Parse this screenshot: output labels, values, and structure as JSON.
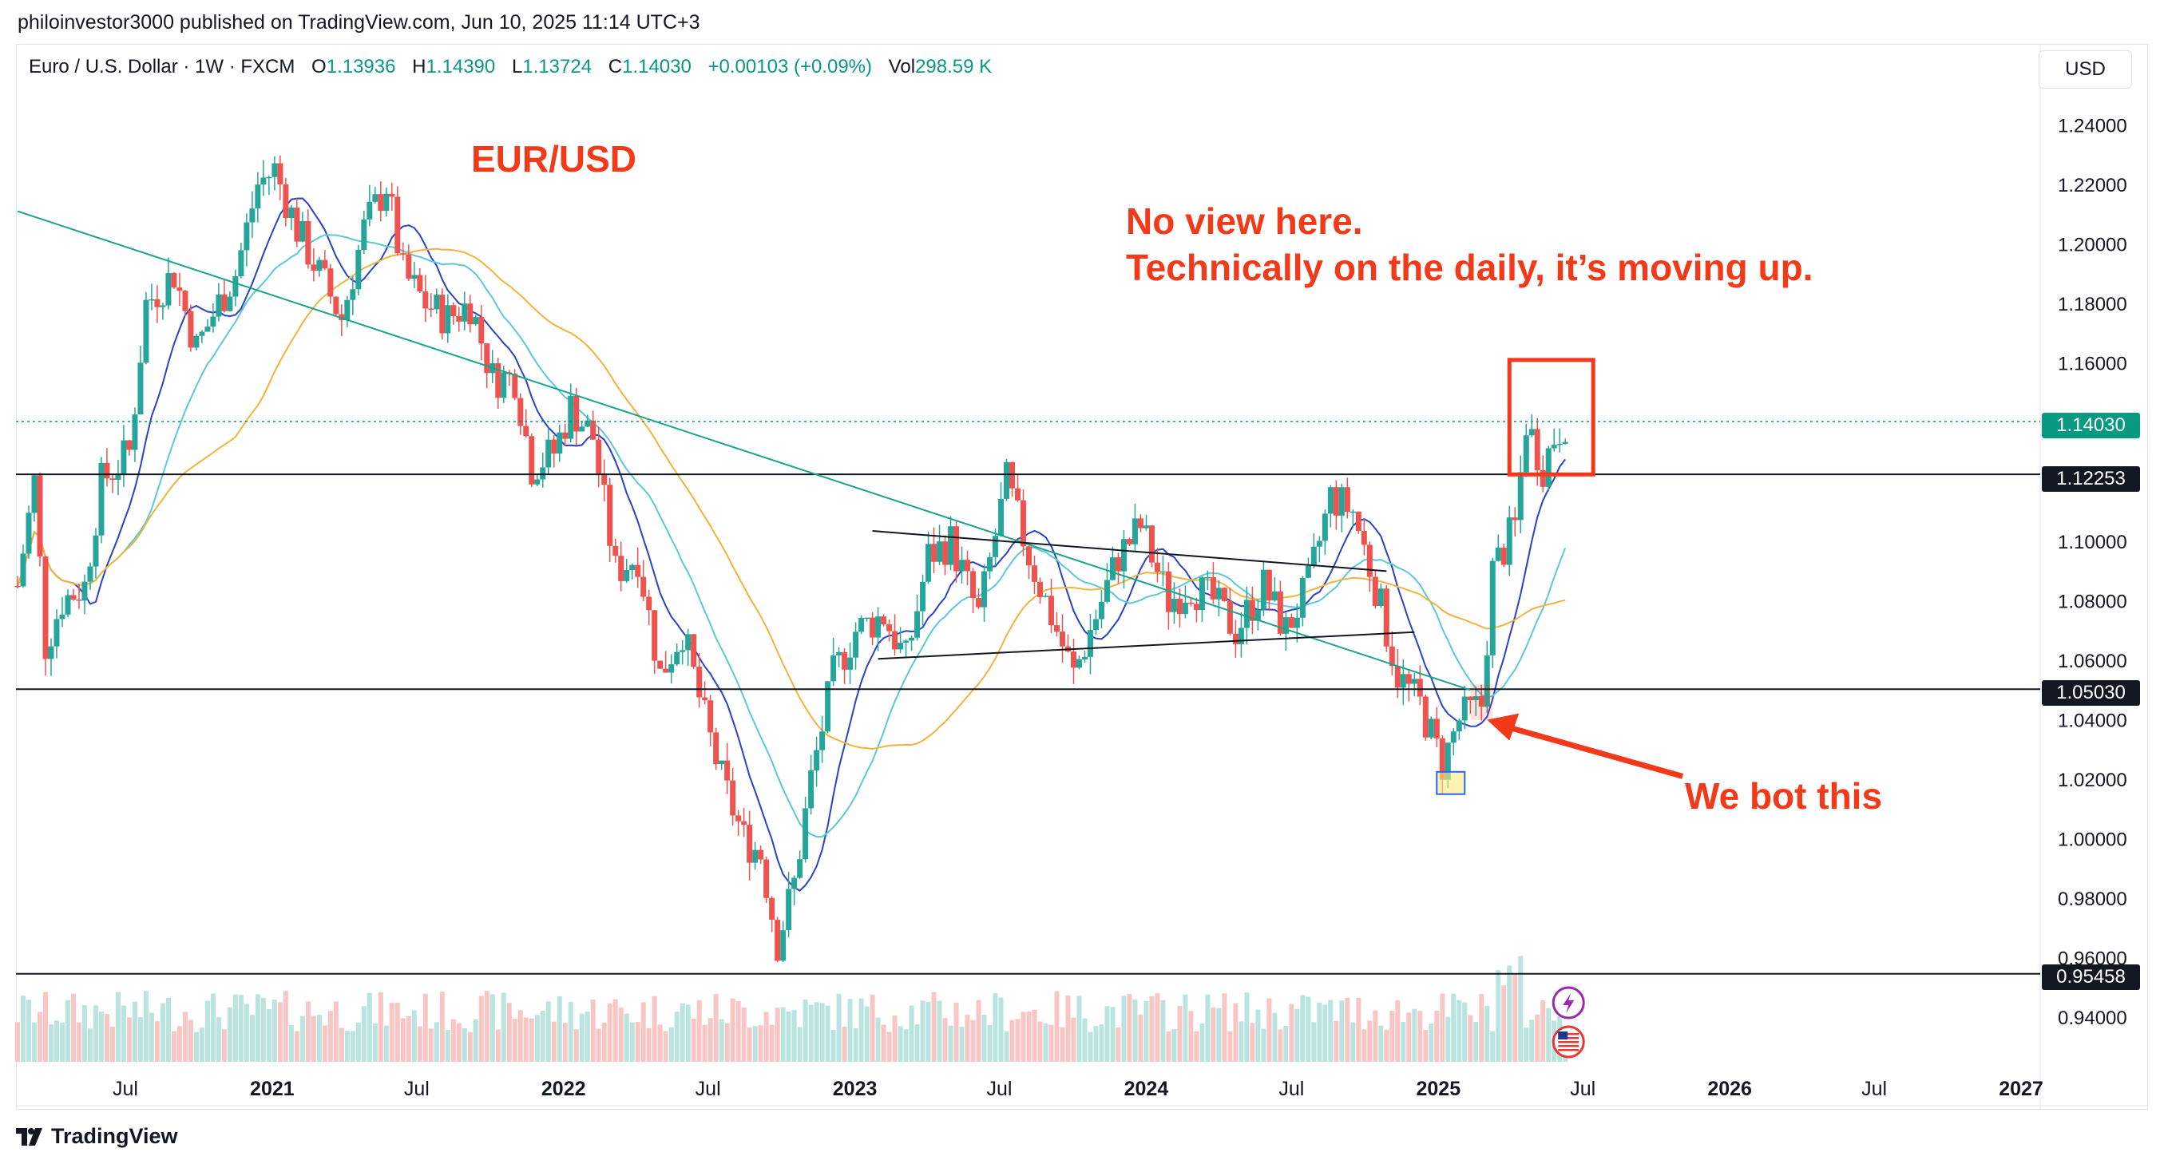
{
  "header": {
    "published": "philoinvestor3000 published on TradingView.com, Jun 10, 2025 11:14 UTC+3"
  },
  "legend": {
    "symbol": "Euro / U.S. Dollar · 1W · FXCM",
    "o_label": "O",
    "o_value": "1.13936",
    "h_label": "H",
    "h_value": "1.14390",
    "l_label": "L",
    "l_value": "1.13724",
    "c_label": "C",
    "c_value": "1.14030",
    "change": "+0.00103 (+0.09%)",
    "vol_label": "Vol",
    "vol_value": "298.59 K"
  },
  "currency_button": "USD",
  "price_tags": {
    "last": "1.14030",
    "line_1": "1.12253",
    "line_2": "1.05030",
    "line_3": "0.95458"
  },
  "annotations": {
    "title": "EUR/USD",
    "view_line1": "No view here.",
    "view_line2": "Technically on the daily, it’s moving up.",
    "bought": "We bot this"
  },
  "footer": {
    "logo_text": "TradingView"
  },
  "colors": {
    "up": "#26a69a",
    "down": "#ef5350",
    "annotation": "#f23a1a",
    "ma_fast": "#2942c9",
    "ma_mid": "#5bc8d8",
    "ma_slow": "#f0b43a",
    "trendline": "#1aa58a",
    "last_price": "#089981"
  },
  "chart_data": {
    "type": "candlestick",
    "interval": "1W",
    "y_axis": {
      "ticks": [
        "1.24000",
        "1.22000",
        "1.20000",
        "1.18000",
        "1.16000",
        "1.14000",
        "1.12000",
        "1.10000",
        "1.08000",
        "1.06000",
        "1.04000",
        "1.02000",
        "1.00000",
        "0.98000",
        "0.96000",
        "0.94000"
      ],
      "range": [
        0.925,
        1.2525
      ],
      "side": "right"
    },
    "x_axis": {
      "ticks": [
        {
          "label": "Jul",
          "date": "2020-07-01",
          "bold": false
        },
        {
          "label": "2021",
          "date": "2021-01-01",
          "bold": true
        },
        {
          "label": "Jul",
          "date": "2021-07-01",
          "bold": false
        },
        {
          "label": "2022",
          "date": "2022-01-01",
          "bold": true
        },
        {
          "label": "Jul",
          "date": "2022-07-01",
          "bold": false
        },
        {
          "label": "2023",
          "date": "2023-01-01",
          "bold": true
        },
        {
          "label": "Jul",
          "date": "2023-07-01",
          "bold": false
        },
        {
          "label": "2024",
          "date": "2024-01-01",
          "bold": true
        },
        {
          "label": "Jul",
          "date": "2024-07-01",
          "bold": false
        },
        {
          "label": "2025",
          "date": "2025-01-01",
          "bold": true
        },
        {
          "label": "Jul",
          "date": "2025-07-01",
          "bold": false
        },
        {
          "label": "2026",
          "date": "2026-01-01",
          "bold": true
        },
        {
          "label": "Jul",
          "date": "2026-07-01",
          "bold": false
        },
        {
          "label": "2027",
          "date": "2027-01-01",
          "bold": true
        }
      ],
      "range": [
        "2020-02-17",
        "2027-01-25"
      ]
    },
    "close_series": [
      [
        "2020-02-17",
        1.085
      ],
      [
        "2020-03-09",
        1.12
      ],
      [
        "2020-03-23",
        1.065
      ],
      [
        "2020-04-13",
        1.08
      ],
      [
        "2020-05-11",
        1.085
      ],
      [
        "2020-06-01",
        1.12
      ],
      [
        "2020-07-06",
        1.13
      ],
      [
        "2020-07-27",
        1.18
      ],
      [
        "2020-08-31",
        1.19
      ],
      [
        "2020-09-28",
        1.165
      ],
      [
        "2020-10-26",
        1.18
      ],
      [
        "2020-11-16",
        1.19
      ],
      [
        "2020-12-14",
        1.22
      ],
      [
        "2021-01-04",
        1.225
      ],
      [
        "2021-02-01",
        1.205
      ],
      [
        "2021-03-01",
        1.19
      ],
      [
        "2021-03-29",
        1.175
      ],
      [
        "2021-04-26",
        1.205
      ],
      [
        "2021-05-24",
        1.22
      ],
      [
        "2021-06-14",
        1.19
      ],
      [
        "2021-07-12",
        1.18
      ],
      [
        "2021-08-09",
        1.175
      ],
      [
        "2021-09-06",
        1.18
      ],
      [
        "2021-10-04",
        1.155
      ],
      [
        "2021-11-01",
        1.155
      ],
      [
        "2021-11-22",
        1.125
      ],
      [
        "2021-12-20",
        1.13
      ],
      [
        "2022-01-10",
        1.145
      ],
      [
        "2022-02-07",
        1.135
      ],
      [
        "2022-03-07",
        1.09
      ],
      [
        "2022-04-04",
        1.095
      ],
      [
        "2022-05-02",
        1.055
      ],
      [
        "2022-05-30",
        1.07
      ],
      [
        "2022-06-27",
        1.04
      ],
      [
        "2022-07-18",
        1.02
      ],
      [
        "2022-08-15",
        1.0
      ],
      [
        "2022-09-05",
        0.995
      ],
      [
        "2022-09-26",
        0.965
      ],
      [
        "2022-10-17",
        0.985
      ],
      [
        "2022-11-07",
        1.02
      ],
      [
        "2022-12-05",
        1.055
      ],
      [
        "2023-01-02",
        1.07
      ],
      [
        "2023-02-06",
        1.075
      ],
      [
        "2023-03-06",
        1.06
      ],
      [
        "2023-04-03",
        1.095
      ],
      [
        "2023-05-01",
        1.1
      ],
      [
        "2023-06-05",
        1.075
      ],
      [
        "2023-07-10",
        1.12
      ],
      [
        "2023-08-07",
        1.095
      ],
      [
        "2023-09-04",
        1.075
      ],
      [
        "2023-10-02",
        1.055
      ],
      [
        "2023-10-30",
        1.075
      ],
      [
        "2023-11-27",
        1.095
      ],
      [
        "2023-12-25",
        1.105
      ],
      [
        "2024-01-29",
        1.08
      ],
      [
        "2024-02-26",
        1.085
      ],
      [
        "2024-03-25",
        1.08
      ],
      [
        "2024-04-22",
        1.07
      ],
      [
        "2024-05-27",
        1.085
      ],
      [
        "2024-06-24",
        1.07
      ],
      [
        "2024-07-22",
        1.085
      ],
      [
        "2024-08-19",
        1.115
      ],
      [
        "2024-09-16",
        1.11
      ],
      [
        "2024-10-14",
        1.085
      ],
      [
        "2024-11-11",
        1.055
      ],
      [
        "2024-12-09",
        1.045
      ],
      [
        "2025-01-06",
        1.025
      ],
      [
        "2025-01-27",
        1.04
      ],
      [
        "2025-02-24",
        1.045
      ],
      [
        "2025-03-10",
        1.09
      ],
      [
        "2025-04-07",
        1.105
      ],
      [
        "2025-04-21",
        1.14
      ],
      [
        "2025-05-12",
        1.125
      ],
      [
        "2025-05-26",
        1.135
      ],
      [
        "2025-06-09",
        1.1403
      ]
    ],
    "horizontal_lines": [
      1.12253,
      1.0503,
      0.95458
    ],
    "last_price": 1.1403
  }
}
